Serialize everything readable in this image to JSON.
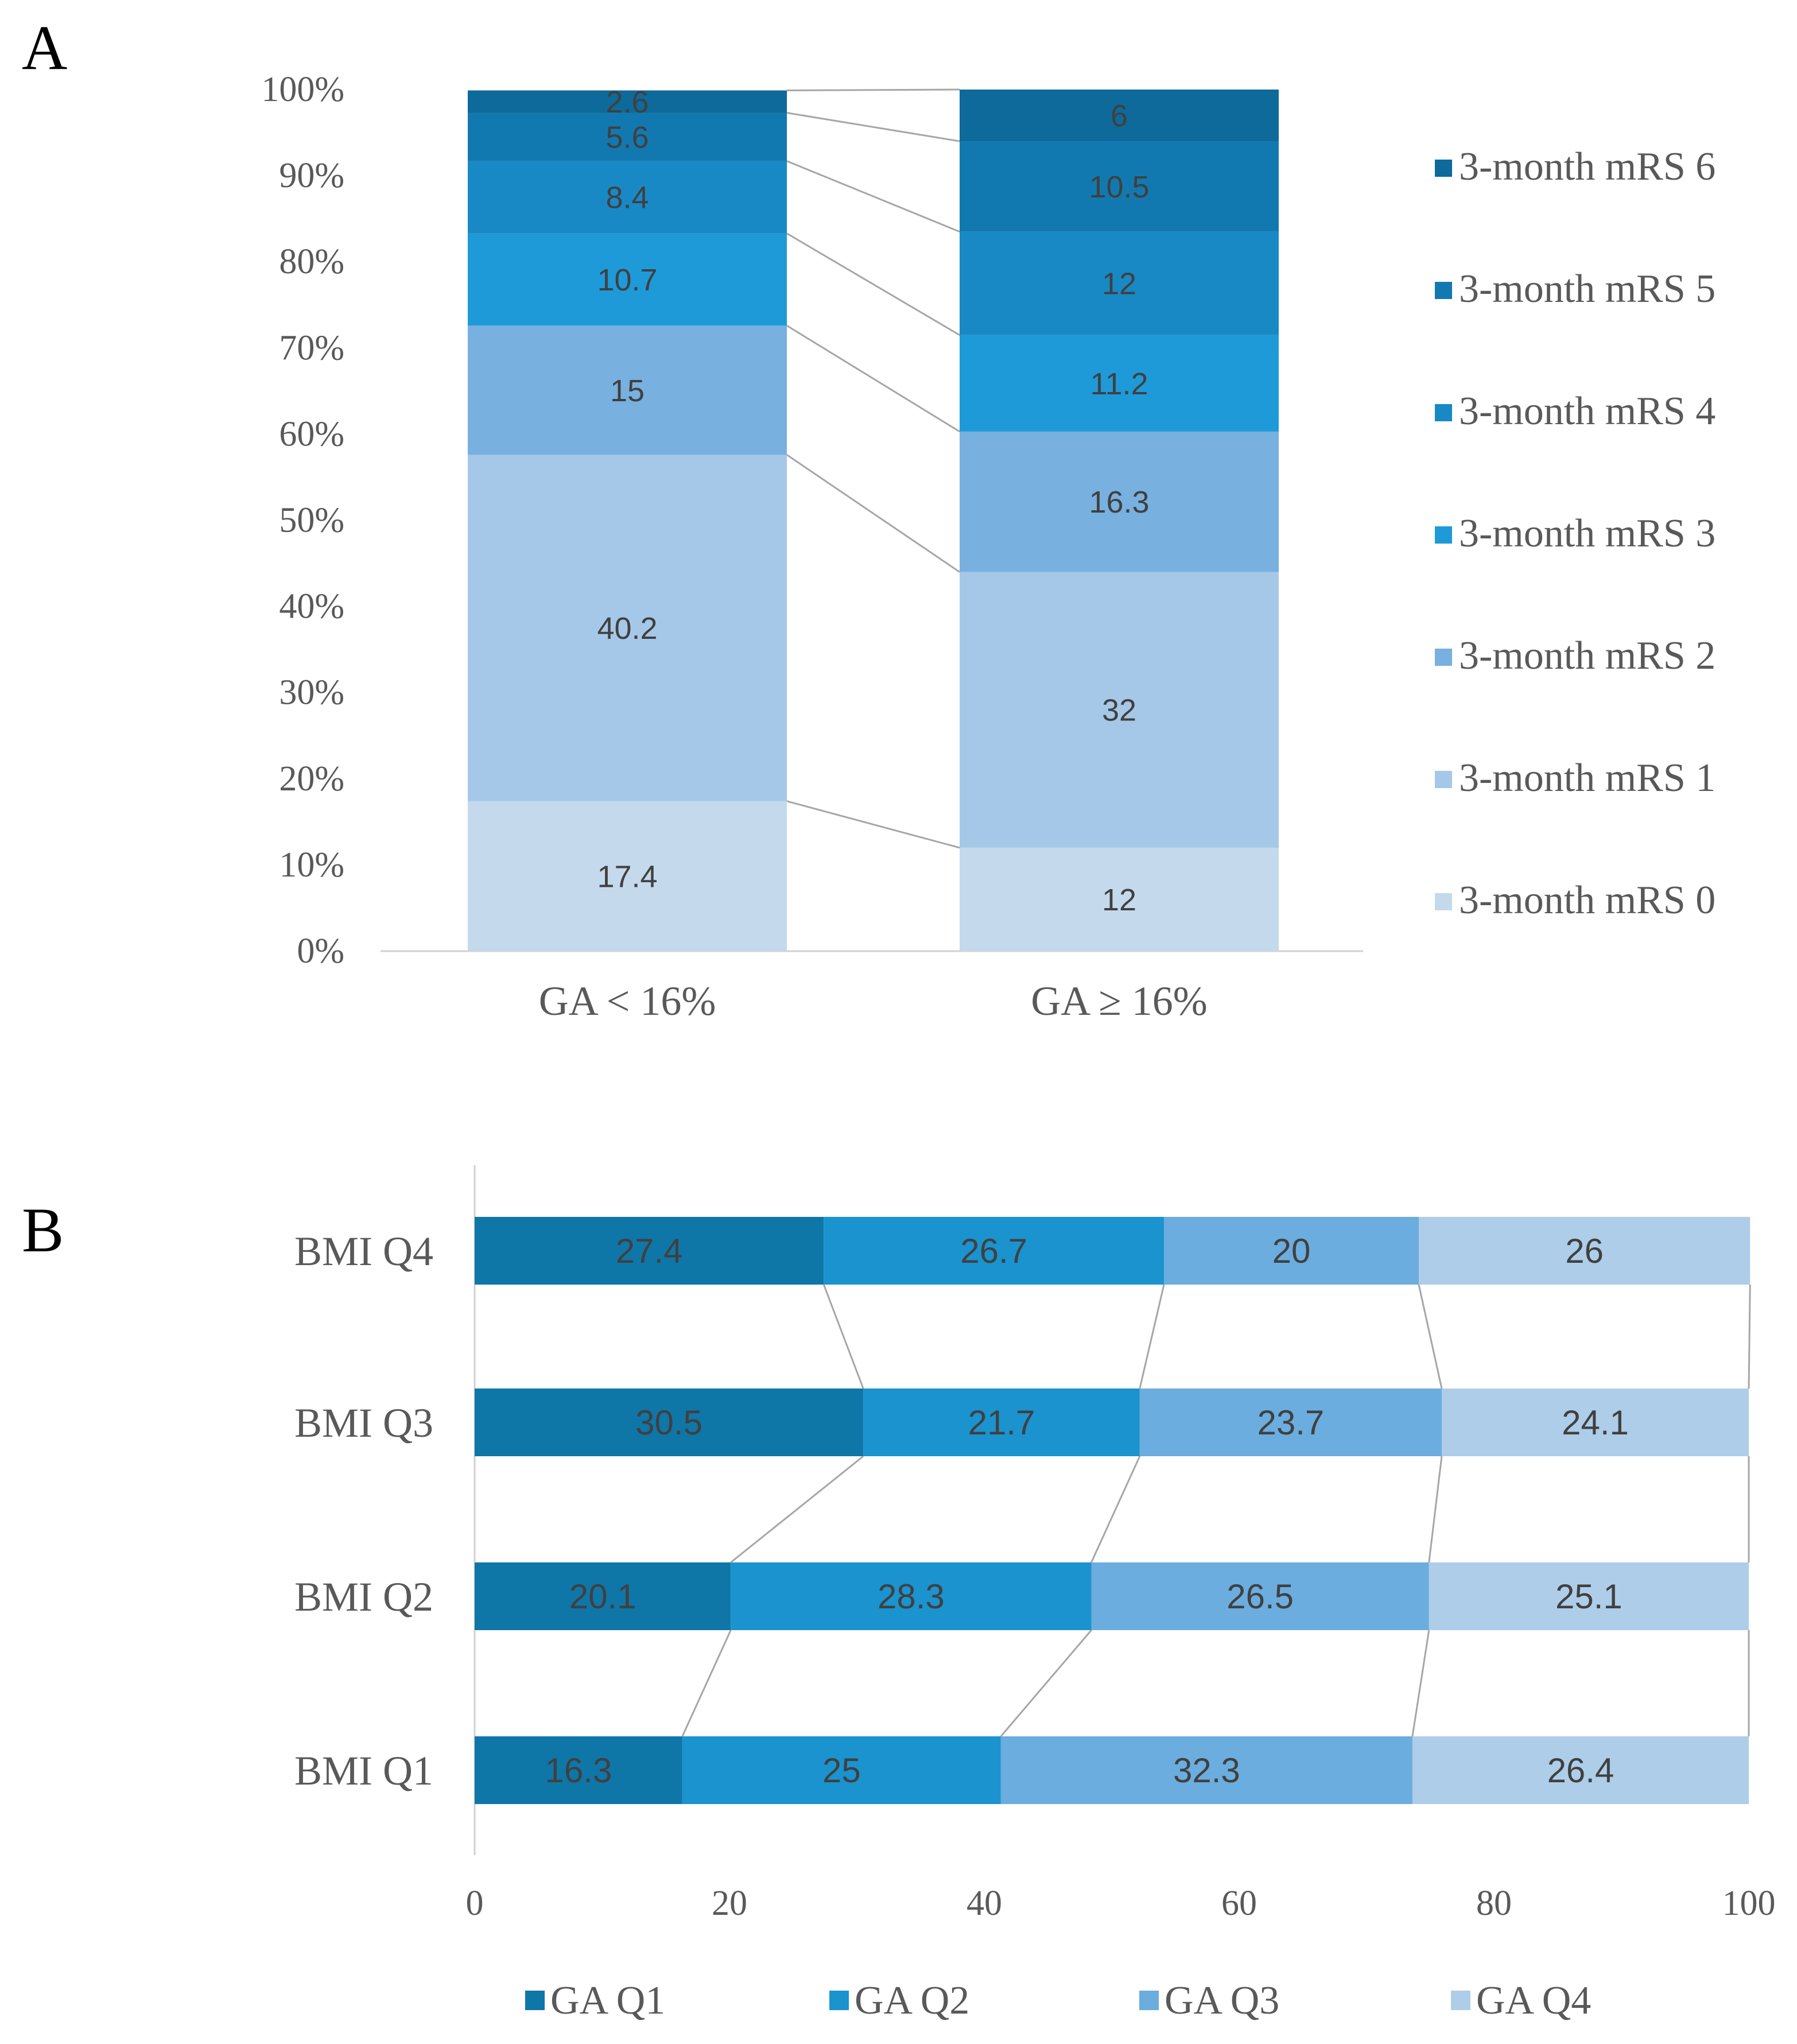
{
  "panels": {
    "a_label": "A",
    "b_label": "B"
  },
  "chart_data": [
    {
      "type": "bar",
      "orientation": "vertical",
      "stacked": "percent",
      "panel": "A",
      "categories": [
        "GA < 16%",
        "GA ≥ 16%"
      ],
      "y_ticks": [
        "0%",
        "10%",
        "20%",
        "30%",
        "40%",
        "50%",
        "60%",
        "70%",
        "80%",
        "90%",
        "100%"
      ],
      "ylim": [
        0,
        100
      ],
      "legend_position": "right",
      "series_lines": true,
      "series": [
        {
          "name": "3-month mRS 0",
          "values": [
            17.4,
            12
          ],
          "labels": [
            "17.4",
            "12"
          ],
          "color": "#c5d9ed"
        },
        {
          "name": "3-month mRS 1",
          "values": [
            40.2,
            32
          ],
          "labels": [
            "40.2",
            "32"
          ],
          "color": "#a6c8e8"
        },
        {
          "name": "3-month mRS 2",
          "values": [
            15,
            16.3
          ],
          "labels": [
            "15",
            "16.3"
          ],
          "color": "#78b0df"
        },
        {
          "name": "3-month mRS 3",
          "values": [
            10.7,
            11.2
          ],
          "labels": [
            "10.7",
            "11.2"
          ],
          "color": "#1e9ad8"
        },
        {
          "name": "3-month mRS 4",
          "values": [
            8.4,
            12
          ],
          "labels": [
            "8.4",
            "12"
          ],
          "color": "#1889c5"
        },
        {
          "name": "3-month mRS 5",
          "values": [
            5.6,
            10.5
          ],
          "labels": [
            "5.6",
            "10.5"
          ],
          "color": "#1279b0"
        },
        {
          "name": "3-month mRS 6",
          "values": [
            2.6,
            6
          ],
          "labels": [
            "2.6",
            "6"
          ],
          "color": "#0e6a9a"
        }
      ]
    },
    {
      "type": "bar",
      "orientation": "horizontal",
      "stacked": "percent",
      "panel": "B",
      "categories": [
        "BMI Q4",
        "BMI Q3",
        "BMI Q2",
        "BMI Q1"
      ],
      "x_ticks": [
        "0",
        "20",
        "40",
        "60",
        "80",
        "100"
      ],
      "xlim": [
        0,
        100
      ],
      "legend_position": "bottom",
      "series_lines": true,
      "series": [
        {
          "name": "GA Q1",
          "values": [
            27.4,
            30.5,
            20.1,
            16.3
          ],
          "labels": [
            "27.4",
            "30.5",
            "20.1",
            "16.3"
          ],
          "color": "#0f76a8"
        },
        {
          "name": "GA Q2",
          "values": [
            26.7,
            21.7,
            28.3,
            25
          ],
          "labels": [
            "26.7",
            "21.7",
            "28.3",
            "25"
          ],
          "color": "#1a93cf"
        },
        {
          "name": "GA Q3",
          "values": [
            20,
            23.7,
            26.5,
            32.3
          ],
          "labels": [
            "20",
            "23.7",
            "26.5",
            "32.3"
          ],
          "color": "#6badde"
        },
        {
          "name": "GA Q4",
          "values": [
            26,
            24.1,
            25.1,
            26.4
          ],
          "labels": [
            "26",
            "24.1",
            "25.1",
            "26.4"
          ],
          "color": "#aecde9"
        }
      ]
    }
  ]
}
